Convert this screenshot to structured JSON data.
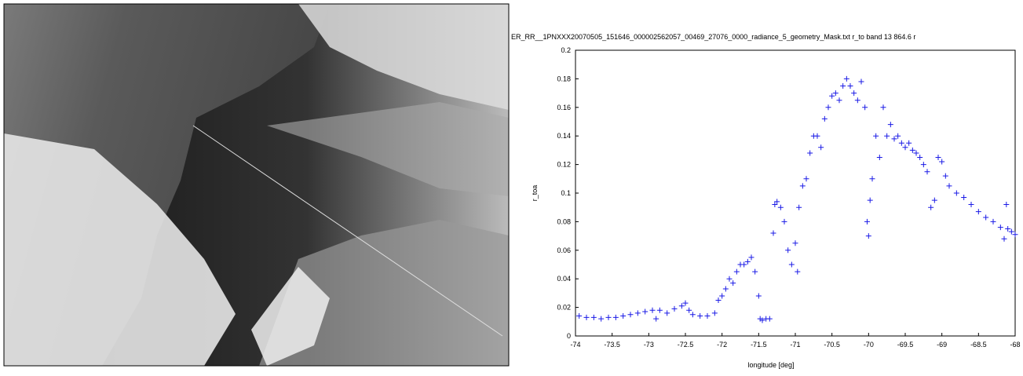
{
  "chart_data": {
    "type": "scatter",
    "title": "ER_RR__1PNXXX20070505_151646_000002562057_00469_27076_0000_radiance_5_geometry_Mask.txt r_to band 13  864.6 r",
    "x_label": "longitude [deg]",
    "y_label": "r_toa",
    "color": "#1a1ae6",
    "xlim": [
      -74,
      -68
    ],
    "ylim": [
      0,
      0.2
    ],
    "xticks": [
      -74,
      -73.5,
      -73,
      -72.5,
      -72,
      -71.5,
      -71,
      -70.5,
      -70,
      -69.5,
      -69,
      -68.5,
      -68
    ],
    "yticks": [
      0,
      0.02,
      0.04,
      0.06,
      0.08,
      0.1,
      0.12,
      0.14,
      0.16,
      0.18,
      0.2
    ],
    "x": [
      -73.95,
      -73.85,
      -73.75,
      -73.65,
      -73.55,
      -73.45,
      -73.35,
      -73.25,
      -73.15,
      -73.05,
      -72.95,
      -72.9,
      -72.85,
      -72.75,
      -72.65,
      -72.55,
      -72.5,
      -72.45,
      -72.4,
      -72.3,
      -72.2,
      -72.1,
      -72.05,
      -72.0,
      -71.95,
      -71.9,
      -71.85,
      -71.8,
      -71.75,
      -71.7,
      -71.65,
      -71.6,
      -71.55,
      -71.5,
      -71.48,
      -71.45,
      -71.4,
      -71.35,
      -71.3,
      -71.28,
      -71.25,
      -71.2,
      -71.15,
      -71.1,
      -71.05,
      -71.0,
      -70.97,
      -70.95,
      -70.9,
      -70.85,
      -70.8,
      -70.75,
      -70.7,
      -70.65,
      -70.6,
      -70.55,
      -70.5,
      -70.45,
      -70.4,
      -70.35,
      -70.3,
      -70.25,
      -70.2,
      -70.15,
      -70.1,
      -70.05,
      -70.02,
      -70.0,
      -69.98,
      -69.95,
      -69.9,
      -69.85,
      -69.8,
      -69.75,
      -69.7,
      -69.65,
      -69.6,
      -69.55,
      -69.5,
      -69.45,
      -69.4,
      -69.35,
      -69.3,
      -69.25,
      -69.2,
      -69.15,
      -69.1,
      -69.05,
      -69.0,
      -68.95,
      -68.9,
      -68.8,
      -68.7,
      -68.6,
      -68.5,
      -68.4,
      -68.3,
      -68.2,
      -68.15,
      -68.12,
      -68.1,
      -68.05,
      -68.0
    ],
    "values": [
      0.014,
      0.013,
      0.013,
      0.012,
      0.013,
      0.013,
      0.014,
      0.015,
      0.016,
      0.017,
      0.018,
      0.012,
      0.018,
      0.016,
      0.019,
      0.021,
      0.023,
      0.018,
      0.015,
      0.014,
      0.014,
      0.016,
      0.025,
      0.028,
      0.033,
      0.04,
      0.037,
      0.045,
      0.05,
      0.05,
      0.052,
      0.055,
      0.045,
      0.028,
      0.012,
      0.011,
      0.012,
      0.012,
      0.072,
      0.092,
      0.094,
      0.09,
      0.08,
      0.06,
      0.05,
      0.065,
      0.045,
      0.09,
      0.105,
      0.11,
      0.128,
      0.14,
      0.14,
      0.132,
      0.152,
      0.16,
      0.168,
      0.17,
      0.165,
      0.175,
      0.18,
      0.175,
      0.17,
      0.165,
      0.178,
      0.16,
      0.08,
      0.07,
      0.095,
      0.11,
      0.14,
      0.125,
      0.16,
      0.14,
      0.148,
      0.138,
      0.14,
      0.135,
      0.132,
      0.135,
      0.13,
      0.128,
      0.125,
      0.12,
      0.115,
      0.09,
      0.095,
      0.125,
      0.122,
      0.112,
      0.105,
      0.1,
      0.097,
      0.092,
      0.087,
      0.083,
      0.08,
      0.076,
      0.068,
      0.092,
      0.075,
      0.073,
      0.071
    ]
  }
}
